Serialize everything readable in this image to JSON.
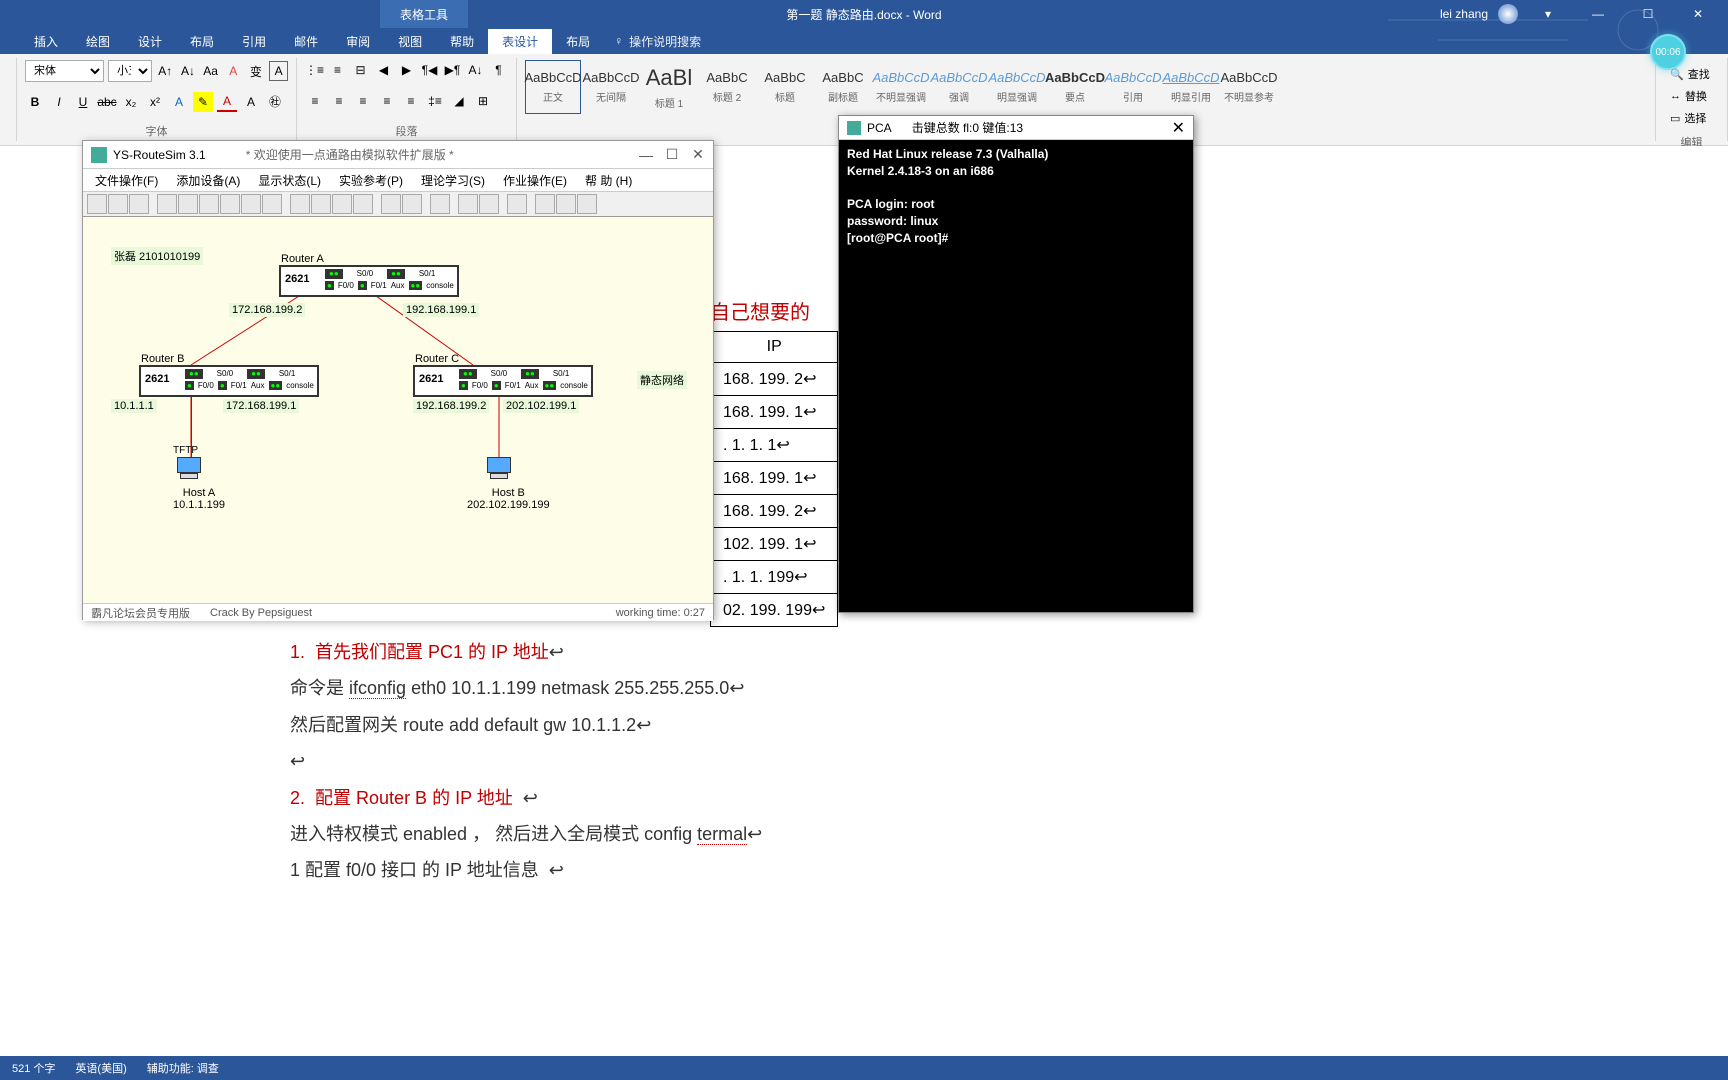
{
  "word": {
    "tool_tab": "表格工具",
    "doc_title": "第一题 静态路由.docx - Word",
    "user": "lei zhang",
    "tabs": [
      "插入",
      "绘图",
      "设计",
      "布局",
      "引用",
      "邮件",
      "审阅",
      "视图",
      "帮助",
      "表设计",
      "布局"
    ],
    "active_tab_idx": 9,
    "search_placeholder": "操作说明搜索",
    "font_group": {
      "font_name": "宋体",
      "font_size": "小五",
      "label": "字体"
    },
    "para_group": {
      "label": "段落"
    },
    "styles": [
      {
        "preview": "AaBbCcD",
        "name": "正文",
        "selected": true
      },
      {
        "preview": "AaBbCcD",
        "name": "无间隔"
      },
      {
        "preview": "AaBl",
        "name": "标题 1",
        "big": true
      },
      {
        "preview": "AaBbC",
        "name": "标题 2"
      },
      {
        "preview": "AaBbC",
        "name": "标题"
      },
      {
        "preview": "AaBbC",
        "name": "副标题"
      },
      {
        "preview": "AaBbCcD",
        "name": "不明显强调",
        "italic": true
      },
      {
        "preview": "AaBbCcD",
        "name": "强调",
        "italic": true
      },
      {
        "preview": "AaBbCcD",
        "name": "明显强调",
        "italic": true
      },
      {
        "preview": "AaBbCcD",
        "name": "要点",
        "bold": true
      },
      {
        "preview": "AaBbCcD",
        "name": "引用",
        "italic": true
      },
      {
        "preview": "AaBbCcD",
        "name": "明显引用",
        "italic": true,
        "underline": true
      },
      {
        "preview": "AaBbCcD",
        "name": "不明显参考"
      }
    ],
    "styles_label": "样式",
    "edit": {
      "find": "查找",
      "replace": "替换",
      "select": "选择",
      "label": "编辑"
    }
  },
  "timer": "00:06",
  "routesim": {
    "app_title": "YS-RouteSim 3.1",
    "subtitle": "* 欢迎使用一点通路由模拟软件扩展版 *",
    "menus": [
      "文件操作(F)",
      "添加设备(A)",
      "显示状态(L)",
      "实验参考(P)",
      "理论学习(S)",
      "作业操作(E)",
      "帮 助 (H)"
    ],
    "student_label": "张磊 2101010199",
    "static_net_label": "静态网络",
    "routers": {
      "A": {
        "name": "Router A",
        "model": "2621",
        "left_ip": "172.168.199.2",
        "right_ip": "192.168.199.1"
      },
      "B": {
        "name": "Router B",
        "model": "2621",
        "left_ip": "10.1.1.1",
        "right_ip": "172.168.199.1"
      },
      "C": {
        "name": "Router C",
        "model": "2621",
        "left_ip": "192.168.199.2",
        "right_ip": "202.102.199.1"
      }
    },
    "hosts": {
      "A": {
        "name": "Host A",
        "ip": "10.1.1.199",
        "proto": "TFTP"
      },
      "B": {
        "name": "Host B",
        "ip": "202.102.199.199"
      }
    },
    "port_labels": {
      "s00": "S0/0",
      "s01": "S0/1",
      "f00": "F0/0",
      "f01": "F0/1",
      "aux": "Aux",
      "console": "console"
    },
    "status": {
      "left": "霸凡论坛会员专用版",
      "mid": "Crack By Pepsiguest",
      "right": "working time: 0:27"
    }
  },
  "pca": {
    "title": "PCA",
    "stats": "击键总数 fl:0    键值:13",
    "lines": [
      "Red Hat Linux release 7.3 (Valhalla)",
      "Kernel 2.4.18-3 on an i686",
      "",
      "PCA login: root",
      "password: linux",
      "[root@PCA root]#"
    ]
  },
  "doc": {
    "partial_title": "自己想要的",
    "ip_header": "IP",
    "table_rows": [
      "168. 199. 2",
      "168. 199. 1",
      ". 1. 1. 1",
      "168. 199. 1",
      "168. 199. 2",
      "102. 199. 1",
      ". 1. 1. 199",
      "02. 199. 199"
    ],
    "step1_num": "1.",
    "step1_title": "首先我们配置 PC1  的  IP  地址",
    "line2a": "命令是 ",
    "line2b": "ifconfig",
    "line2c": " eth0 10.1.1.199 netmask 255.255.255.0",
    "line3": "然后配置网关       route add default gw 10.1.1.2",
    "step2_num": "2.",
    "step2_title": "配置 Router B  的 IP 地址",
    "line5a": "进入特权模式  enabled  ， 然后进入全局模式  config ",
    "line5b": "termal",
    "line6": "1 配置 f0/0 接口  的 IP 地址信息"
  },
  "statusbar": {
    "words": "521 个字",
    "lang": "英语(美国)",
    "a11y": "辅助功能: 调查"
  }
}
